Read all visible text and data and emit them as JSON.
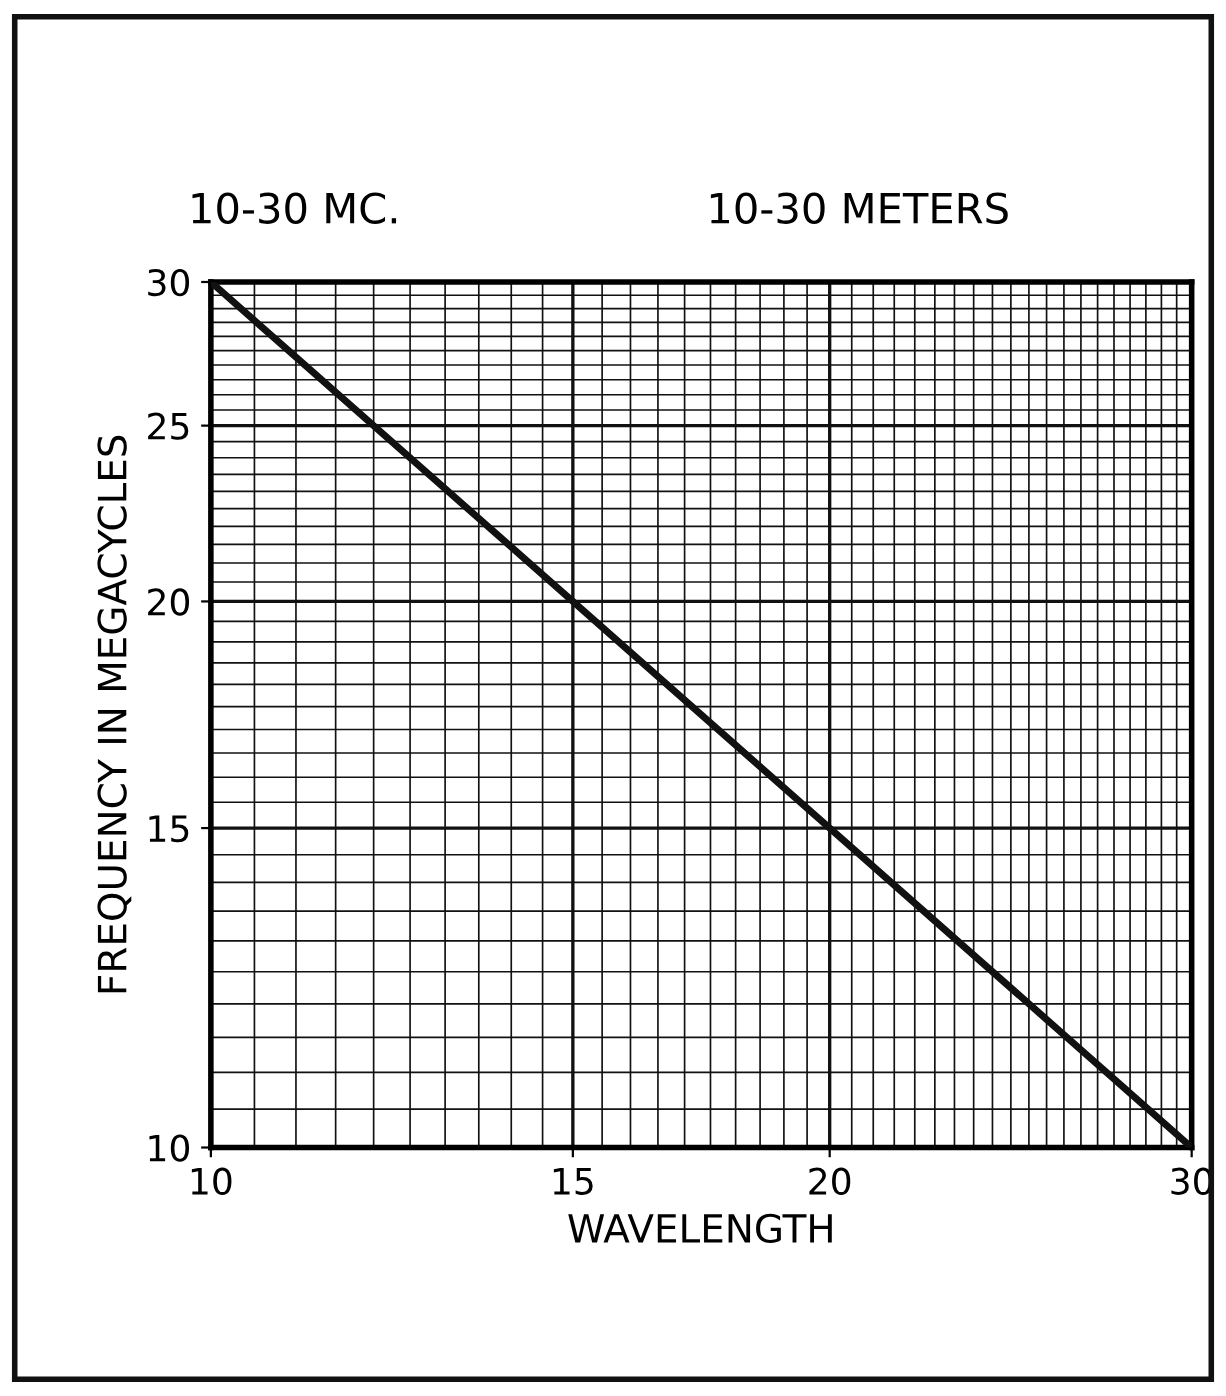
{
  "chart_data": {
    "type": "line",
    "xlabel": "WAVELENGTH",
    "ylabel": "FREQUENCY IN MEGACYCLES",
    "annotations": [
      "10-30 MC.",
      "10-30 METERS"
    ],
    "x": [
      10,
      15,
      20,
      30
    ],
    "series": [
      {
        "color": "#111111",
        "values": [
          30,
          20,
          15,
          10
        ]
      }
    ],
    "log": "xy",
    "xlim": [
      10,
      30
    ],
    "ylim": [
      10,
      30
    ],
    "xticks": [
      10,
      15,
      20,
      30
    ],
    "yticks": [
      10,
      15,
      20,
      25,
      30
    ],
    "grid": true,
    "marker": "none",
    "line_style": "solid"
  }
}
